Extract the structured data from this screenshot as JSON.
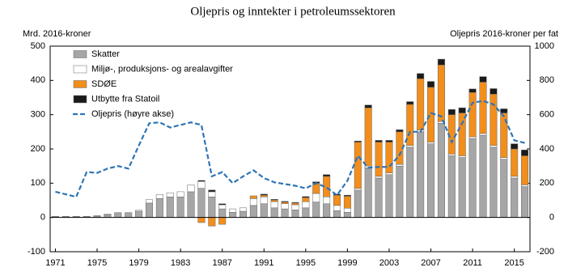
{
  "chart_data": {
    "type": "bar",
    "title": "Oljepris og inntekter i petroleumssektoren",
    "y_label": "Mrd. 2016-kroner",
    "y2_label": "Oljepris 2016-kroner per fat",
    "categories": [
      "1971",
      null,
      null,
      null,
      "1975",
      null,
      null,
      null,
      "1979",
      null,
      null,
      null,
      "1983",
      null,
      null,
      null,
      "1987",
      null,
      null,
      null,
      "1991",
      null,
      null,
      null,
      "1995",
      null,
      null,
      null,
      "1999",
      null,
      null,
      null,
      "2003",
      null,
      null,
      null,
      "2007",
      null,
      null,
      null,
      "2011",
      null,
      null,
      null,
      "2015",
      null
    ],
    "ylim": [
      -100,
      500
    ],
    "yticks": [
      -100,
      0,
      100,
      200,
      300,
      400,
      500
    ],
    "y2lim": [
      -200,
      1000
    ],
    "y2ticks": [
      -200,
      0,
      200,
      400,
      600,
      800,
      1000
    ],
    "legend": "upper left",
    "series": [
      {
        "name": "Skatter",
        "color": "#a6a6a6",
        "values": [
          2,
          2,
          2,
          2,
          4,
          8,
          12,
          12,
          18,
          42,
          55,
          60,
          60,
          75,
          85,
          60,
          25,
          15,
          18,
          35,
          40,
          28,
          25,
          22,
          28,
          45,
          40,
          20,
          15,
          80,
          145,
          115,
          125,
          150,
          205,
          250,
          215,
          275,
          180,
          175,
          230,
          240,
          205,
          170,
          115,
          90
        ]
      },
      {
        "name": "Miljø-, produksjons- og arealavgifter",
        "color": "#ffffff",
        "values": [
          1,
          1,
          1,
          1,
          1,
          2,
          2,
          2,
          3,
          10,
          12,
          12,
          15,
          20,
          20,
          15,
          12,
          10,
          10,
          20,
          20,
          18,
          15,
          15,
          18,
          25,
          20,
          15,
          12,
          5,
          5,
          5,
          5,
          5,
          5,
          5,
          5,
          5,
          5,
          5,
          5,
          5,
          5,
          5,
          5,
          5
        ]
      },
      {
        "name": "SDØE",
        "color": "#f28e1c",
        "values": [
          0,
          0,
          0,
          0,
          0,
          0,
          0,
          0,
          0,
          0,
          0,
          0,
          0,
          0,
          -15,
          -25,
          -20,
          0,
          0,
          8,
          5,
          5,
          5,
          5,
          12,
          30,
          60,
          30,
          35,
          135,
          170,
          100,
          90,
          95,
          120,
          150,
          160,
          165,
          115,
          125,
          130,
          150,
          150,
          130,
          80,
          85
        ]
      },
      {
        "name": "Utbytte fra Statoil",
        "color": "#1a1a1a",
        "values": [
          0,
          0,
          0,
          0,
          0,
          0,
          0,
          0,
          0,
          0,
          0,
          0,
          0,
          0,
          3,
          5,
          3,
          0,
          0,
          0,
          3,
          2,
          2,
          2,
          3,
          4,
          5,
          3,
          3,
          3,
          8,
          5,
          5,
          6,
          8,
          15,
          17,
          17,
          15,
          15,
          10,
          16,
          16,
          12,
          15,
          17
        ]
      },
      {
        "name": "Oljepris (høyre akse)",
        "color": "#2e75b6",
        "axis": "y2",
        "type": "line",
        "values": [
          150,
          135,
          120,
          265,
          260,
          285,
          300,
          285,
          420,
          550,
          555,
          525,
          540,
          555,
          540,
          240,
          265,
          200,
          240,
          275,
          230,
          205,
          195,
          185,
          170,
          200,
          175,
          130,
          215,
          360,
          290,
          295,
          295,
          365,
          500,
          500,
          610,
          590,
          440,
          550,
          670,
          680,
          660,
          590,
          450,
          435
        ]
      }
    ]
  }
}
